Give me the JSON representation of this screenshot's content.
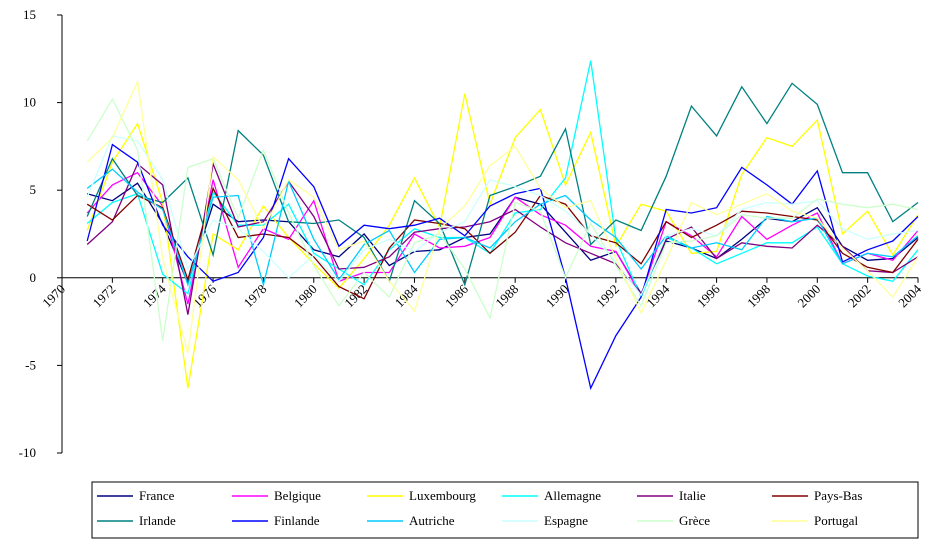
{
  "chart_data": {
    "type": "line",
    "x": [
      1971,
      1972,
      1973,
      1974,
      1975,
      1976,
      1977,
      1978,
      1979,
      1980,
      1981,
      1982,
      1983,
      1984,
      1985,
      1986,
      1987,
      1988,
      1989,
      1990,
      1991,
      1992,
      1993,
      1994,
      1995,
      1996,
      1997,
      1998,
      1999,
      2000,
      2001,
      2002,
      2003,
      2004
    ],
    "xlim": [
      1970,
      2004
    ],
    "xticks": [
      1970,
      1972,
      1974,
      1976,
      1978,
      1980,
      1982,
      1984,
      1986,
      1988,
      1990,
      1992,
      1994,
      1996,
      1998,
      2000,
      2002,
      2004
    ],
    "ylim": [
      -10,
      15
    ],
    "yticks": [
      -10,
      -5,
      0,
      5,
      10,
      15
    ],
    "series": [
      {
        "name": "France",
        "color": "#000080",
        "values": [
          4.8,
          4.4,
          5.4,
          3.1,
          -0.3,
          4.2,
          3.2,
          3.3,
          3.2,
          1.6,
          1.2,
          2.5,
          0.7,
          1.5,
          1.6,
          2.3,
          2.5,
          4.6,
          4.2,
          2.6,
          1.0,
          1.5,
          -0.9,
          2.1,
          1.7,
          1.1,
          2.2,
          3.4,
          3.2,
          4.0,
          1.8,
          1.0,
          1.1,
          2.3
        ]
      },
      {
        "name": "Belgique",
        "color": "#ff00ff",
        "values": [
          3.7,
          5.3,
          6.0,
          4.1,
          -1.5,
          5.6,
          0.6,
          2.8,
          2.2,
          4.4,
          -0.2,
          0.3,
          0.3,
          2.5,
          1.7,
          1.8,
          2.3,
          4.6,
          3.6,
          3.0,
          1.8,
          1.5,
          -1.0,
          3.2,
          2.4,
          1.2,
          3.5,
          2.2,
          3.0,
          3.7,
          0.8,
          1.4,
          1.0,
          2.7
        ]
      },
      {
        "name": "Luxembourg",
        "color": "#ffff00",
        "values": [
          2.7,
          6.6,
          8.8,
          4.3,
          -6.3,
          2.5,
          1.6,
          4.1,
          2.3,
          0.8,
          -0.6,
          1.1,
          3.0,
          5.7,
          2.9,
          10.5,
          4.2,
          8.0,
          9.6,
          5.3,
          8.3,
          1.8,
          4.2,
          3.8,
          1.4,
          1.5,
          5.9,
          8.0,
          7.5,
          9.0,
          2.5,
          3.8,
          1.3,
          3.6
        ]
      },
      {
        "name": "Allemagne",
        "color": "#00ffff",
        "values": [
          3.1,
          4.3,
          4.8,
          0.2,
          -0.9,
          4.9,
          3.0,
          3.0,
          4.2,
          1.4,
          0.5,
          -0.4,
          1.6,
          2.8,
          2.3,
          2.3,
          1.4,
          3.7,
          3.9,
          5.7,
          12.4,
          2.2,
          -1.1,
          2.3,
          1.7,
          0.8,
          1.4,
          2.0,
          2.0,
          2.9,
          0.8,
          0.1,
          -0.2,
          1.6
        ]
      },
      {
        "name": "Italie",
        "color": "#800080",
        "values": [
          1.9,
          3.2,
          6.5,
          5.3,
          -2.1,
          6.5,
          2.9,
          3.2,
          5.5,
          3.5,
          0.5,
          0.6,
          1.2,
          2.6,
          2.8,
          2.9,
          3.2,
          3.9,
          2.9,
          2.0,
          1.4,
          0.8,
          -0.9,
          2.2,
          2.9,
          1.1,
          2.0,
          1.8,
          1.7,
          3.0,
          1.8,
          0.4,
          0.3,
          1.2
        ]
      },
      {
        "name": "Pays-Bas",
        "color": "#800000",
        "values": [
          4.2,
          3.3,
          4.7,
          4.0,
          -0.1,
          5.1,
          2.3,
          2.5,
          2.3,
          1.2,
          -0.5,
          -1.2,
          1.7,
          3.3,
          3.1,
          2.8,
          1.4,
          2.6,
          4.7,
          4.2,
          2.4,
          2.0,
          0.8,
          3.2,
          2.3,
          3.0,
          3.8,
          3.7,
          3.5,
          3.3,
          1.4,
          0.6,
          0.3,
          2.2
        ]
      },
      {
        "name": "Irlande",
        "color": "#008080",
        "values": [
          3.5,
          6.8,
          4.7,
          4.3,
          5.7,
          1.3,
          8.4,
          7.0,
          3.2,
          3.1,
          3.3,
          2.3,
          -0.2,
          4.4,
          3.1,
          -0.4,
          4.7,
          5.2,
          5.8,
          8.5,
          1.9,
          3.3,
          2.7,
          5.8,
          9.8,
          8.1,
          10.9,
          8.8,
          11.1,
          9.9,
          6.0,
          6.0,
          3.2,
          4.3
        ]
      },
      {
        "name": "Finlande",
        "color": "#0000ff",
        "values": [
          2.1,
          7.6,
          6.6,
          3.0,
          1.2,
          -0.2,
          0.3,
          2.3,
          6.8,
          5.2,
          1.8,
          3.0,
          2.8,
          3.0,
          3.4,
          2.4,
          4.1,
          4.8,
          5.1,
          0.0,
          -6.3,
          -3.3,
          -1.1,
          3.9,
          3.7,
          4.0,
          6.3,
          5.3,
          4.2,
          6.1,
          0.9,
          1.6,
          2.1,
          3.5
        ]
      },
      {
        "name": "Autriche",
        "color": "#00ccff",
        "values": [
          5.1,
          6.2,
          4.9,
          3.9,
          -0.4,
          4.6,
          4.7,
          -0.4,
          5.5,
          2.2,
          -0.1,
          1.9,
          2.7,
          0.3,
          2.2,
          2.3,
          1.7,
          3.2,
          4.2,
          4.7,
          3.3,
          2.3,
          0.5,
          2.4,
          1.7,
          2.0,
          1.6,
          3.5,
          3.2,
          3.4,
          0.8,
          1.4,
          1.2,
          2.4
        ]
      },
      {
        "name": "Espagne",
        "color": "#ccffff",
        "values": [
          4.6,
          8.1,
          7.8,
          5.6,
          0.5,
          3.3,
          2.8,
          1.5,
          0.0,
          1.3,
          -0.2,
          1.6,
          2.2,
          1.5,
          2.6,
          3.2,
          5.6,
          5.2,
          4.7,
          3.8,
          2.5,
          0.9,
          -1.0,
          2.4,
          2.8,
          2.4,
          3.9,
          4.3,
          4.2,
          4.4,
          2.8,
          2.2,
          2.5,
          2.7
        ]
      },
      {
        "name": "Grèce",
        "color": "#ccffcc",
        "values": [
          7.8,
          10.2,
          7.3,
          -3.6,
          6.3,
          6.8,
          3.4,
          7.3,
          3.7,
          0.7,
          -1.6,
          0.3,
          -1.1,
          2.0,
          2.5,
          0.5,
          -2.3,
          4.3,
          3.8,
          0.0,
          3.1,
          0.7,
          -1.6,
          2.0,
          2.1,
          2.4,
          3.6,
          3.4,
          3.4,
          4.5,
          4.2,
          4.0,
          4.2,
          3.9
        ]
      },
      {
        "name": "Portugal",
        "color": "#ffff99",
        "values": [
          6.6,
          8.0,
          11.2,
          1.1,
          -4.3,
          6.9,
          5.6,
          2.8,
          5.6,
          4.6,
          1.6,
          2.1,
          -0.2,
          -1.9,
          2.8,
          4.1,
          6.4,
          7.5,
          5.1,
          4.0,
          4.4,
          1.1,
          -2.0,
          1.0,
          4.3,
          3.6,
          4.2,
          4.8,
          3.8,
          3.4,
          1.7,
          0.4,
          -1.1,
          1.2
        ]
      }
    ]
  }
}
